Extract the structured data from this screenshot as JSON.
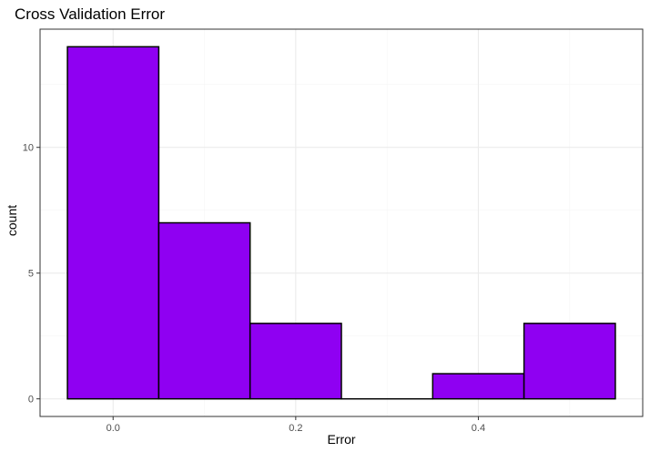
{
  "chart_data": {
    "type": "bar",
    "title": "Cross Validation Error",
    "xlabel": "Error",
    "ylabel": "count",
    "bins": [
      {
        "x0": -0.05,
        "x1": 0.05,
        "count": 14
      },
      {
        "x0": 0.05,
        "x1": 0.15,
        "count": 7
      },
      {
        "x0": 0.15,
        "x1": 0.25,
        "count": 3
      },
      {
        "x0": 0.25,
        "x1": 0.35,
        "count": 0
      },
      {
        "x0": 0.35,
        "x1": 0.45,
        "count": 1
      },
      {
        "x0": 0.45,
        "x1": 0.55,
        "count": 3
      }
    ],
    "xticks": [
      0.0,
      0.2,
      0.4
    ],
    "xtick_labels": [
      "0.0",
      "0.2",
      "0.4"
    ],
    "yticks": [
      0,
      5,
      10
    ],
    "ytick_labels": [
      "0",
      "5",
      "10"
    ],
    "xlim": [
      -0.08,
      0.58
    ],
    "ylim": [
      -0.7,
      14.7
    ],
    "grid": true,
    "colors": {
      "fill": "#8f00f2",
      "outline": "#000000",
      "grid_major": "#ebebeb",
      "grid_minor": "#f5f5f5",
      "panel_border": "#333333"
    }
  }
}
